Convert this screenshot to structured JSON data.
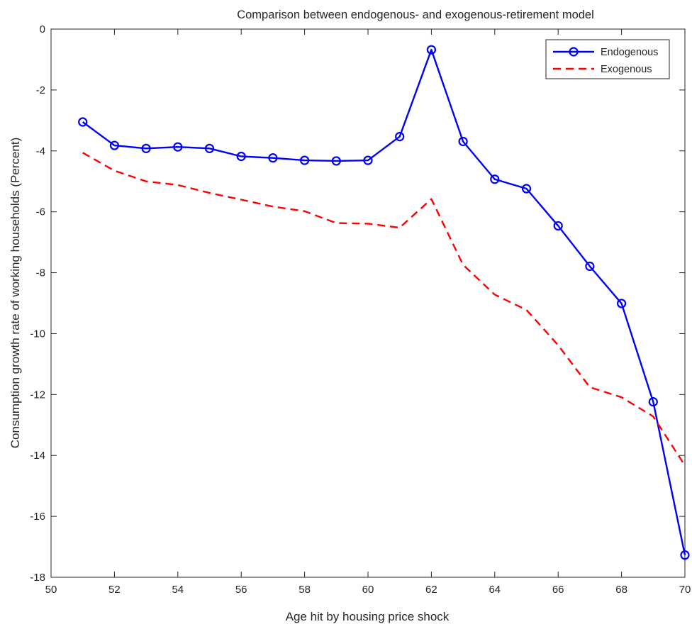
{
  "chart_data": {
    "type": "line",
    "title": "Comparison between endogenous- and exogenous-retirement model",
    "xlabel": "Age hit by housing price shock",
    "ylabel": "Consumption growth rate of working households (Percent)",
    "xlim": [
      50,
      70
    ],
    "ylim": [
      -18,
      0
    ],
    "xticks": [
      50,
      52,
      54,
      56,
      58,
      60,
      62,
      64,
      66,
      68,
      70
    ],
    "yticks": [
      0,
      -2,
      -4,
      -6,
      -8,
      -10,
      -12,
      -14,
      -16,
      -18
    ],
    "grid": false,
    "legend_position": "top-right",
    "x": [
      51,
      52,
      53,
      54,
      55,
      56,
      57,
      58,
      59,
      60,
      61,
      62,
      63,
      64,
      65,
      66,
      67,
      68,
      69,
      70
    ],
    "series": [
      {
        "name": "Endogenous",
        "color": "#0000ff",
        "style": "solid-circle-markers",
        "values": [
          -3.05,
          -3.82,
          -3.92,
          -3.87,
          -3.92,
          -4.18,
          -4.23,
          -4.31,
          -4.33,
          -4.31,
          -3.53,
          -0.68,
          -3.69,
          -4.93,
          -5.24,
          -6.46,
          -7.79,
          -9.01,
          -12.24,
          -17.27
        ]
      },
      {
        "name": "Exogenous",
        "color": "#ff0000",
        "style": "dashed",
        "values": [
          -4.06,
          -4.65,
          -5.0,
          -5.12,
          -5.38,
          -5.6,
          -5.83,
          -5.98,
          -6.37,
          -6.39,
          -6.52,
          -5.58,
          -7.74,
          -8.72,
          -9.22,
          -10.38,
          -11.76,
          -12.09,
          -12.72,
          -14.33
        ]
      }
    ]
  }
}
